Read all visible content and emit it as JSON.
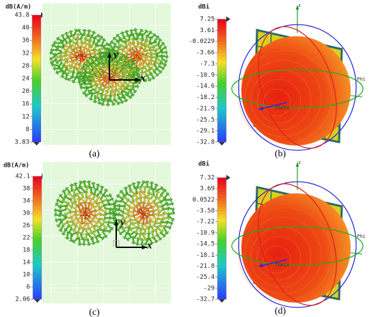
{
  "panels": [
    {
      "label": "(a)",
      "unit": "dB(A/m)",
      "colorbar_ticks": [
        "43.8",
        "40",
        "36",
        "32",
        "28",
        "24",
        "20",
        "16",
        "12",
        "8",
        "3.83"
      ],
      "axes": [
        "y",
        "x"
      ]
    },
    {
      "label": "(b)",
      "unit": "dBi",
      "colorbar_ticks": [
        "7.25",
        "3.61",
        "-0.0229",
        "-3.66",
        "-7.3",
        "-10.9",
        "-14.6",
        "-18.2",
        "-21.9",
        "-25.5",
        "-29.1",
        "-32.8"
      ],
      "axes": [
        "z",
        "Phi",
        "Theta"
      ]
    },
    {
      "label": "(c)",
      "unit": "dB(A/m)",
      "colorbar_ticks": [
        "42.1",
        "38",
        "34",
        "30",
        "26",
        "22",
        "18",
        "14",
        "10",
        "6",
        "2.06"
      ],
      "axes": [
        "y",
        "x"
      ]
    },
    {
      "label": "(d)",
      "unit": "dBi",
      "colorbar_ticks": [
        "7.32",
        "3.69",
        "0.0522",
        "-3.58",
        "-7.22",
        "-10.9",
        "-14.5",
        "-18.1",
        "-21.8",
        "-25.4",
        "-29",
        "-32.7"
      ],
      "axes": [
        "z",
        "Phi",
        "Theta"
      ]
    }
  ]
}
